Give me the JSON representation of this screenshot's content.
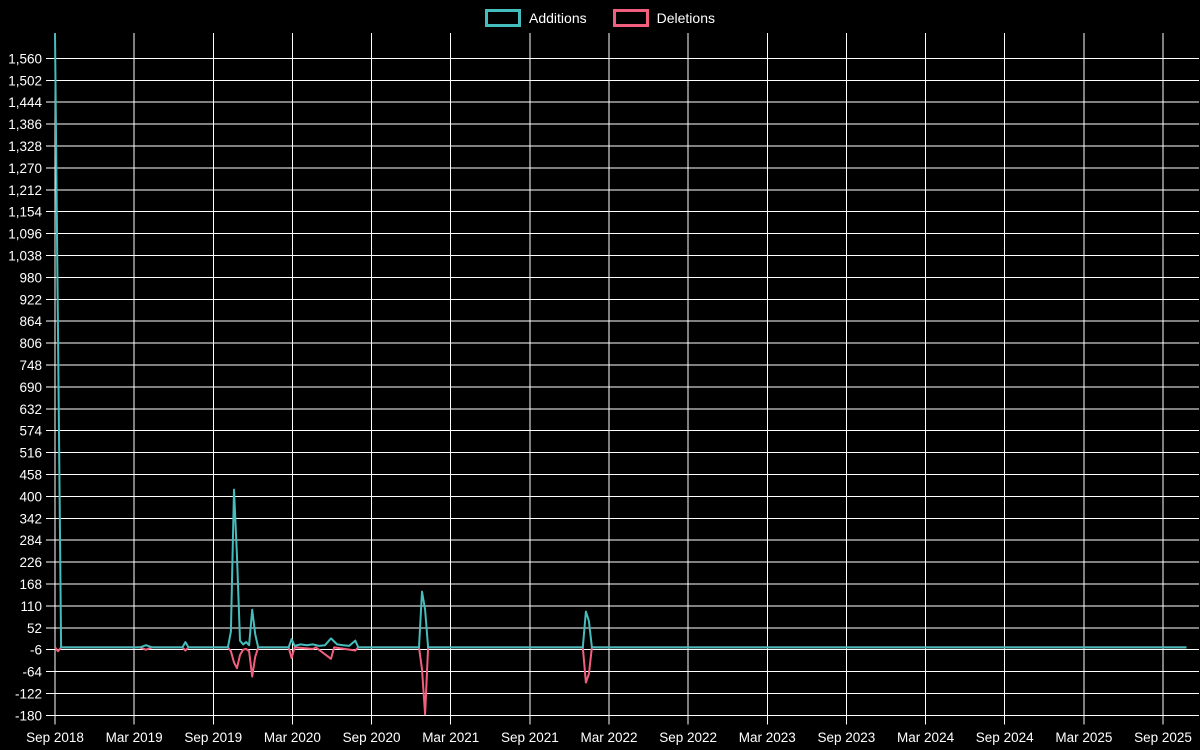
{
  "legend": {
    "additions_label": "Additions",
    "deletions_label": "Deletions"
  },
  "colors": {
    "background": "#000000",
    "grid": "#ffffff",
    "text": "#ffffff",
    "additions": "#45BDBD",
    "deletions": "#F25F7E"
  },
  "chart_data": {
    "type": "line",
    "title": "",
    "xlabel": "",
    "ylabel": "",
    "grid": true,
    "legend_position": "top-center",
    "x_tick_labels": [
      "Sep 2018",
      "Mar 2019",
      "Sep 2019",
      "Mar 2020",
      "Sep 2020",
      "Mar 2021",
      "Sep 2021",
      "Mar 2022",
      "Sep 2022",
      "Mar 2023",
      "Sep 2023",
      "Mar 2024",
      "Sep 2024",
      "Mar 2025",
      "Sep 2025"
    ],
    "y_tick_labels": [
      "1,560",
      "1,502",
      "1,444",
      "1,386",
      "1,328",
      "1,270",
      "1,212",
      "1,154",
      "1,096",
      "1,038",
      "980",
      "922",
      "864",
      "806",
      "748",
      "690",
      "632",
      "574",
      "516",
      "458",
      "400",
      "342",
      "284",
      "226",
      "168",
      "110",
      "52",
      "-6",
      "-64",
      "-122",
      "-180"
    ],
    "y_tick_values": [
      1560,
      1502,
      1444,
      1386,
      1328,
      1270,
      1212,
      1154,
      1096,
      1038,
      980,
      922,
      864,
      806,
      748,
      690,
      632,
      574,
      516,
      458,
      400,
      342,
      284,
      226,
      168,
      110,
      52,
      -6,
      -64,
      -122,
      -180
    ],
    "y_tick_step": 58,
    "ylim": [
      -180,
      1626
    ],
    "x_weeks_range": [
      0,
      373
    ],
    "weeks_per_x_tick": 26.09,
    "series": [
      {
        "name": "Additions",
        "color_key": "additions",
        "points_week_value": [
          [
            0,
            1626
          ],
          [
            1,
            833
          ],
          [
            2,
            0
          ],
          [
            28,
            0
          ],
          [
            30,
            6
          ],
          [
            32,
            0
          ],
          [
            42,
            0
          ],
          [
            43,
            14
          ],
          [
            44,
            0
          ],
          [
            57,
            0
          ],
          [
            58,
            42
          ],
          [
            59,
            418
          ],
          [
            60,
            240
          ],
          [
            61,
            18
          ],
          [
            62,
            8
          ],
          [
            63,
            14
          ],
          [
            64,
            6
          ],
          [
            65,
            100
          ],
          [
            66,
            35
          ],
          [
            67,
            0
          ],
          [
            77,
            0
          ],
          [
            78,
            22
          ],
          [
            79,
            4
          ],
          [
            81,
            8
          ],
          [
            83,
            6
          ],
          [
            85,
            8
          ],
          [
            87,
            4
          ],
          [
            89,
            6
          ],
          [
            91,
            24
          ],
          [
            93,
            8
          ],
          [
            95,
            6
          ],
          [
            97,
            4
          ],
          [
            99,
            18
          ],
          [
            100,
            0
          ],
          [
            120,
            0
          ],
          [
            121,
            148
          ],
          [
            122,
            100
          ],
          [
            123,
            0
          ],
          [
            174,
            0
          ],
          [
            175,
            95
          ],
          [
            176,
            70
          ],
          [
            177,
            0
          ],
          [
            373,
            0
          ]
        ]
      },
      {
        "name": "Deletions",
        "color_key": "deletions",
        "points_week_value": [
          [
            0,
            0
          ],
          [
            1,
            -10
          ],
          [
            2,
            0
          ],
          [
            28,
            0
          ],
          [
            30,
            -6
          ],
          [
            32,
            0
          ],
          [
            42,
            0
          ],
          [
            43,
            -8
          ],
          [
            44,
            0
          ],
          [
            57,
            0
          ],
          [
            58,
            -10
          ],
          [
            59,
            -40
          ],
          [
            60,
            -55
          ],
          [
            61,
            -20
          ],
          [
            62,
            -6
          ],
          [
            63,
            -4
          ],
          [
            64,
            -10
          ],
          [
            65,
            -77
          ],
          [
            66,
            -25
          ],
          [
            67,
            0
          ],
          [
            77,
            0
          ],
          [
            78,
            -28
          ],
          [
            79,
            0
          ],
          [
            85,
            -4
          ],
          [
            86,
            0
          ],
          [
            91,
            -30
          ],
          [
            92,
            0
          ],
          [
            99,
            -8
          ],
          [
            100,
            0
          ],
          [
            120,
            0
          ],
          [
            121,
            -58
          ],
          [
            122,
            -177
          ],
          [
            123,
            0
          ],
          [
            174,
            0
          ],
          [
            175,
            -93
          ],
          [
            176,
            -70
          ],
          [
            177,
            0
          ],
          [
            373,
            0
          ]
        ]
      }
    ]
  }
}
